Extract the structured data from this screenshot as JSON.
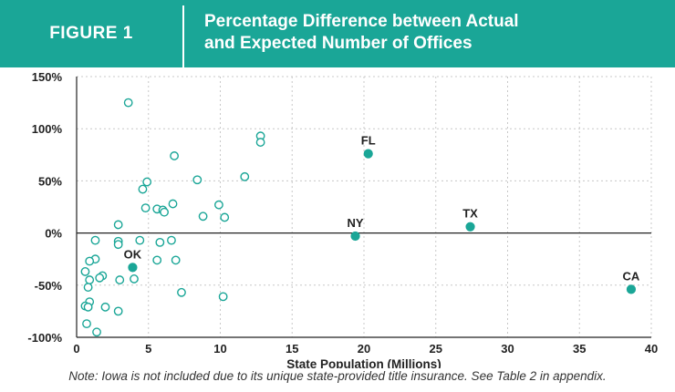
{
  "header": {
    "figure_label": "FIGURE 1",
    "title_line1": "Percentage Difference between Actual",
    "title_line2": "and Expected Number of Offices"
  },
  "note": "Note: Iowa is not included due to its unique state-provided title insurance. See Table 2 in appendix.",
  "colors": {
    "accent": "#1aa697",
    "grid": "#c8c8c8",
    "text": "#222222"
  },
  "chart_data": {
    "type": "scatter",
    "xlabel": "State Population (Millions)",
    "ylabel": "",
    "xlim": [
      0,
      40
    ],
    "ylim": [
      -100,
      150
    ],
    "xticks": [
      0,
      5,
      10,
      15,
      20,
      25,
      30,
      35,
      40
    ],
    "yticks": [
      150,
      100,
      50,
      0,
      -50,
      -100
    ],
    "ytick_labels": [
      "150%",
      "100%",
      "50%",
      "0%",
      "-50%",
      "-100%"
    ],
    "grid": true,
    "points": [
      {
        "x": 3.6,
        "y": 125
      },
      {
        "x": 12.8,
        "y": 93
      },
      {
        "x": 12.8,
        "y": 87
      },
      {
        "x": 6.8,
        "y": 74
      },
      {
        "x": 11.7,
        "y": 54
      },
      {
        "x": 8.4,
        "y": 51
      },
      {
        "x": 4.9,
        "y": 49
      },
      {
        "x": 4.6,
        "y": 42
      },
      {
        "x": 6.7,
        "y": 28
      },
      {
        "x": 9.9,
        "y": 27
      },
      {
        "x": 4.8,
        "y": 24
      },
      {
        "x": 5.6,
        "y": 23
      },
      {
        "x": 6.0,
        "y": 22
      },
      {
        "x": 6.1,
        "y": 20
      },
      {
        "x": 8.8,
        "y": 16
      },
      {
        "x": 10.3,
        "y": 15
      },
      {
        "x": 2.9,
        "y": 8
      },
      {
        "x": 1.3,
        "y": -7
      },
      {
        "x": 2.9,
        "y": -8
      },
      {
        "x": 2.9,
        "y": -11
      },
      {
        "x": 4.4,
        "y": -7
      },
      {
        "x": 5.8,
        "y": -9
      },
      {
        "x": 6.6,
        "y": -7
      },
      {
        "x": 1.3,
        "y": -25
      },
      {
        "x": 0.9,
        "y": -27
      },
      {
        "x": 5.6,
        "y": -26
      },
      {
        "x": 6.9,
        "y": -26
      },
      {
        "x": 0.6,
        "y": -37
      },
      {
        "x": 1.8,
        "y": -41
      },
      {
        "x": 1.6,
        "y": -43
      },
      {
        "x": 0.9,
        "y": -45
      },
      {
        "x": 3.0,
        "y": -45
      },
      {
        "x": 4.0,
        "y": -44
      },
      {
        "x": 0.8,
        "y": -52
      },
      {
        "x": 7.3,
        "y": -57
      },
      {
        "x": 10.2,
        "y": -61
      },
      {
        "x": 0.9,
        "y": -66
      },
      {
        "x": 0.6,
        "y": -70
      },
      {
        "x": 0.8,
        "y": -71
      },
      {
        "x": 2.0,
        "y": -71
      },
      {
        "x": 2.9,
        "y": -75
      },
      {
        "x": 0.7,
        "y": -87
      },
      {
        "x": 1.4,
        "y": -95
      }
    ],
    "highlighted": [
      {
        "label": "FL",
        "x": 20.3,
        "y": 76
      },
      {
        "label": "NY",
        "x": 19.4,
        "y": -3
      },
      {
        "label": "TX",
        "x": 27.4,
        "y": 6
      },
      {
        "label": "OK",
        "x": 3.9,
        "y": -33
      },
      {
        "label": "CA",
        "x": 38.6,
        "y": -54
      }
    ]
  }
}
